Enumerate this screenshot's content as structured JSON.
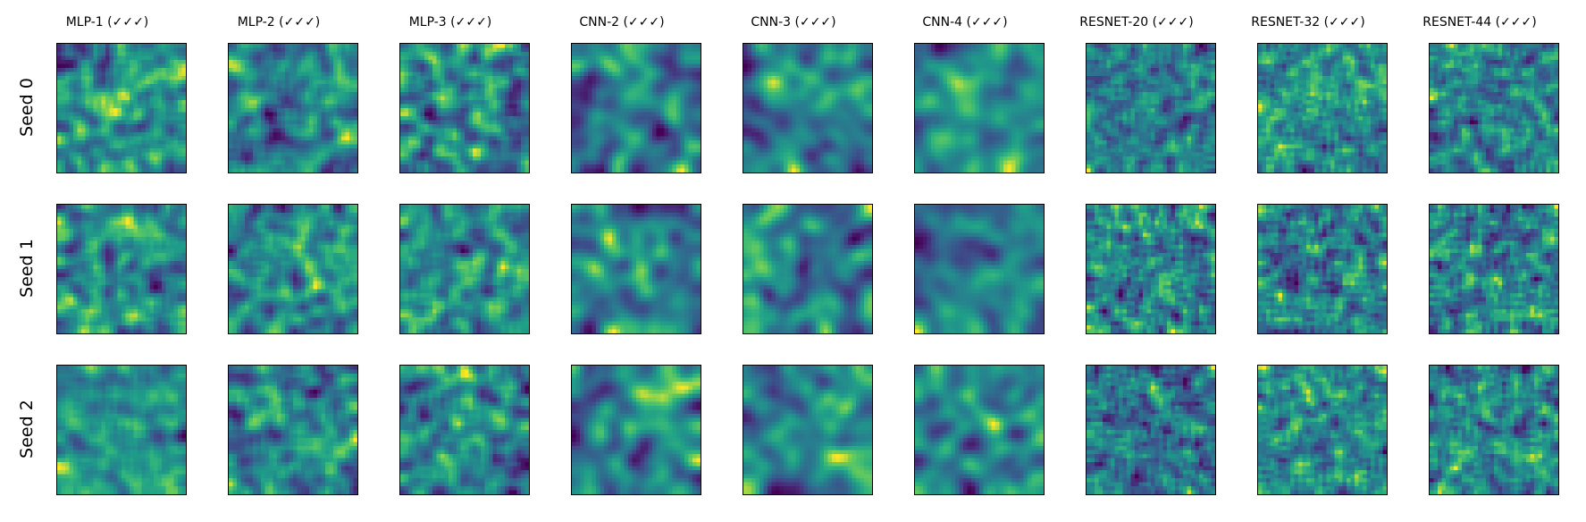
{
  "chart_data": {
    "type": "heatmap",
    "colormap": "viridis",
    "grid": false,
    "columns": [
      "MLP-1 (✓✓✓)",
      "MLP-2 (✓✓✓)",
      "MLP-3 (✓✓✓)",
      "CNN-2 (✓✓✓)",
      "CNN-3 (✓✓✓)",
      "CNN-4 (✓✓✓)",
      "RESNET-20 (✓✓✓)",
      "RESNET-32 (✓✓✓)",
      "RESNET-44 (✓✓✓)"
    ],
    "rows": [
      "Seed 0",
      "Seed 1",
      "Seed 2"
    ],
    "colors": {
      "viridis_low": "#440154",
      "viridis_mid": "#21918c",
      "viridis_high": "#fde725",
      "border": "#000000"
    }
  }
}
